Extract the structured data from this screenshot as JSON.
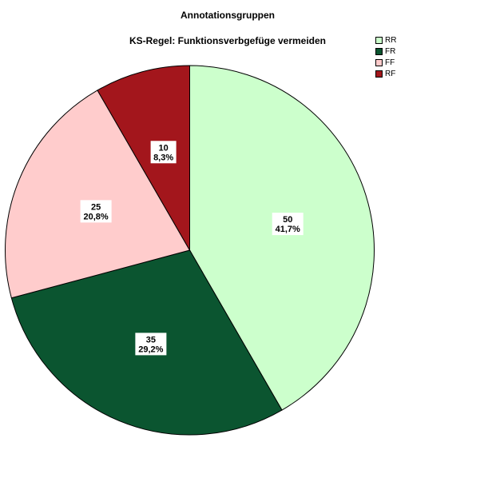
{
  "chart_data": {
    "type": "pie",
    "title": "Annotationsgruppen",
    "subtitle": "KS-Regel: Funktionsverbgefüge vermeiden",
    "slices": [
      {
        "label": "RR",
        "value": 50,
        "percent": "41,7%",
        "color": "#ccffcc"
      },
      {
        "label": "FR",
        "value": 35,
        "percent": "29,2%",
        "color": "#0b5530"
      },
      {
        "label": "FF",
        "value": 25,
        "percent": "20,8%",
        "color": "#ffcccc"
      },
      {
        "label": "RF",
        "value": 10,
        "percent": "8,3%",
        "color": "#a3161c"
      }
    ],
    "legend_position": "top-right"
  }
}
